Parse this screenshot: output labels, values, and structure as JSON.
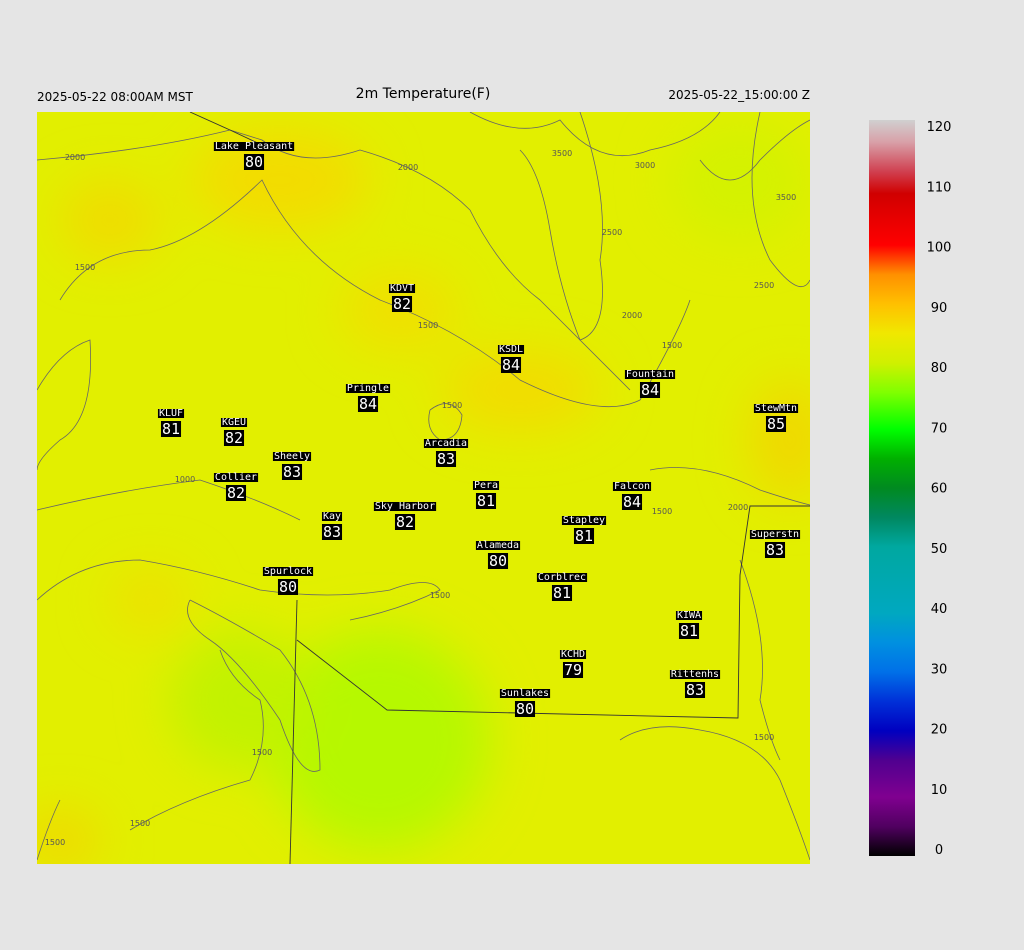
{
  "header": {
    "left": "2025-05-22 08:00AM MST",
    "title": "2m Temperature(F)",
    "right": "2025-05-22_15:00:00 Z"
  },
  "stations": [
    {
      "name": "Lake Pleasant",
      "value": 80
    },
    {
      "name": "KDVT",
      "value": 82
    },
    {
      "name": "KSDL",
      "value": 84
    },
    {
      "name": "Fountain",
      "value": 84
    },
    {
      "name": "Pringle",
      "value": 84
    },
    {
      "name": "KLUF",
      "value": 81
    },
    {
      "name": "KGEU",
      "value": 82
    },
    {
      "name": "StewMtn",
      "value": 85
    },
    {
      "name": "Sheely",
      "value": 83
    },
    {
      "name": "Arcadia",
      "value": 83
    },
    {
      "name": "Collier",
      "value": 82
    },
    {
      "name": "Pera",
      "value": 81
    },
    {
      "name": "Falcon",
      "value": 84
    },
    {
      "name": "Kay",
      "value": 83
    },
    {
      "name": "Sky Harbor",
      "value": 82
    },
    {
      "name": "Stapley",
      "value": 81
    },
    {
      "name": "Superstn",
      "value": 83
    },
    {
      "name": "Alameda",
      "value": 80
    },
    {
      "name": "Spurlock",
      "value": 80
    },
    {
      "name": "Corblrec",
      "value": 81
    },
    {
      "name": "KIWA",
      "value": 81
    },
    {
      "name": "KCHD",
      "value": 79
    },
    {
      "name": "Rittenhs",
      "value": 83
    },
    {
      "name": "Sunlakes",
      "value": 80
    }
  ],
  "contour_labels": [
    "2000",
    "2000",
    "3500",
    "3000",
    "3500",
    "2500",
    "2500",
    "2000",
    "1500",
    "1500",
    "1500",
    "1500",
    "1000",
    "1500",
    "2000",
    "1500",
    "1500",
    "1500",
    "1500",
    "1500"
  ],
  "colorbar": {
    "ticks": [
      0,
      10,
      20,
      30,
      40,
      50,
      60,
      70,
      80,
      90,
      100,
      110,
      120
    ],
    "lim": [
      0,
      120
    ]
  }
}
